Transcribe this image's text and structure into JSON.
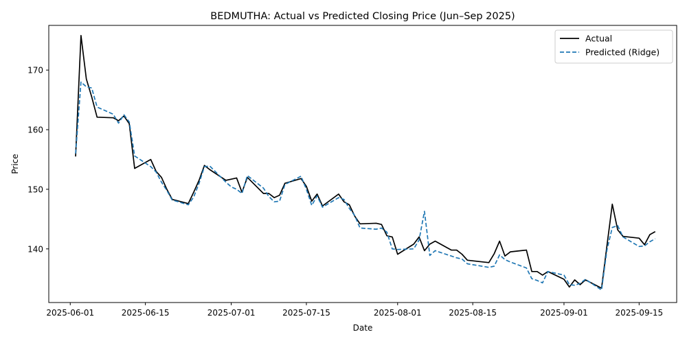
{
  "chart_data": {
    "type": "line",
    "title": "BEDMUTHA: Actual vs Predicted Closing Price (Jun–Sep 2025)",
    "xlabel": "Date",
    "ylabel": "Price",
    "xlim": [
      "2025-05-28",
      "2025-09-22"
    ],
    "ylim": [
      131,
      177.5
    ],
    "grid": false,
    "legend_position": "top-right",
    "x_ticks": [
      "2025-06-01",
      "2025-06-15",
      "2025-07-01",
      "2025-07-15",
      "2025-08-01",
      "2025-08-15",
      "2025-09-01",
      "2025-09-15"
    ],
    "y_ticks": [
      140,
      150,
      160,
      170
    ],
    "x": [
      "2025-06-02",
      "2025-06-03",
      "2025-06-04",
      "2025-06-05",
      "2025-06-06",
      "2025-06-09",
      "2025-06-10",
      "2025-06-11",
      "2025-06-12",
      "2025-06-13",
      "2025-06-16",
      "2025-06-17",
      "2025-06-18",
      "2025-06-19",
      "2025-06-20",
      "2025-06-23",
      "2025-06-24",
      "2025-06-25",
      "2025-06-26",
      "2025-06-27",
      "2025-06-30",
      "2025-07-01",
      "2025-07-02",
      "2025-07-03",
      "2025-07-04",
      "2025-07-07",
      "2025-07-08",
      "2025-07-09",
      "2025-07-10",
      "2025-07-11",
      "2025-07-14",
      "2025-07-15",
      "2025-07-16",
      "2025-07-17",
      "2025-07-18",
      "2025-07-21",
      "2025-07-22",
      "2025-07-23",
      "2025-07-24",
      "2025-07-25",
      "2025-07-28",
      "2025-07-29",
      "2025-07-30",
      "2025-07-31",
      "2025-08-01",
      "2025-08-04",
      "2025-08-05",
      "2025-08-06",
      "2025-08-07",
      "2025-08-08",
      "2025-08-11",
      "2025-08-12",
      "2025-08-13",
      "2025-08-14",
      "2025-08-18",
      "2025-08-19",
      "2025-08-20",
      "2025-08-21",
      "2025-08-22",
      "2025-08-25",
      "2025-08-26",
      "2025-08-27",
      "2025-08-28",
      "2025-08-29",
      "2025-09-01",
      "2025-09-02",
      "2025-09-03",
      "2025-09-04",
      "2025-09-05",
      "2025-09-08",
      "2025-09-09",
      "2025-09-10",
      "2025-09-11",
      "2025-09-12",
      "2025-09-15",
      "2025-09-16",
      "2025-09-17",
      "2025-09-18"
    ],
    "series": [
      {
        "name": "Actual",
        "color": "#000000",
        "style": "solid",
        "values": [
          155.5,
          175.8,
          168.5,
          165.5,
          162.1,
          162.0,
          161.5,
          162.3,
          161.0,
          153.5,
          155.0,
          153.0,
          152.0,
          150.0,
          148.3,
          147.6,
          149.5,
          151.5,
          154.0,
          153.3,
          151.5,
          151.7,
          151.9,
          149.5,
          152.0,
          149.3,
          149.3,
          148.6,
          149.0,
          151.0,
          151.8,
          150.5,
          148.0,
          149.2,
          147.2,
          149.2,
          147.9,
          147.4,
          145.5,
          144.2,
          144.3,
          144.1,
          142.2,
          142.0,
          139.1,
          140.8,
          142.0,
          139.7,
          140.8,
          141.3,
          139.8,
          139.8,
          139.1,
          138.1,
          137.7,
          139.2,
          141.3,
          138.8,
          139.5,
          139.8,
          136.2,
          136.2,
          135.6,
          136.2,
          134.9,
          133.6,
          134.8,
          134.0,
          134.8,
          133.4,
          140.5,
          147.5,
          143.2,
          142.1,
          141.8,
          140.7,
          142.4,
          142.9
        ]
      },
      {
        "name": "Predicted (Ridge)",
        "color": "#1f77b4",
        "style": "dashed",
        "values": [
          156.0,
          168.0,
          167.2,
          167.0,
          163.8,
          162.6,
          161.1,
          162.5,
          161.3,
          155.6,
          153.8,
          152.9,
          151.2,
          149.8,
          148.2,
          147.4,
          148.7,
          151.0,
          153.8,
          153.9,
          151.2,
          150.4,
          150.0,
          149.3,
          152.3,
          150.2,
          148.8,
          147.9,
          148.0,
          150.8,
          152.2,
          150.0,
          147.3,
          148.9,
          147.0,
          148.6,
          148.3,
          146.8,
          145.6,
          143.5,
          143.3,
          143.5,
          142.8,
          140.0,
          139.9,
          140.0,
          141.5,
          146.3,
          138.9,
          139.7,
          138.8,
          138.5,
          138.3,
          137.5,
          136.9,
          137.1,
          139.0,
          138.2,
          137.8,
          136.8,
          135.0,
          134.7,
          134.3,
          136.2,
          135.6,
          134.0,
          133.9,
          134.2,
          134.9,
          133.1,
          139.8,
          143.6,
          143.9,
          142.0,
          140.4,
          140.5,
          141.2,
          141.7
        ]
      }
    ]
  }
}
